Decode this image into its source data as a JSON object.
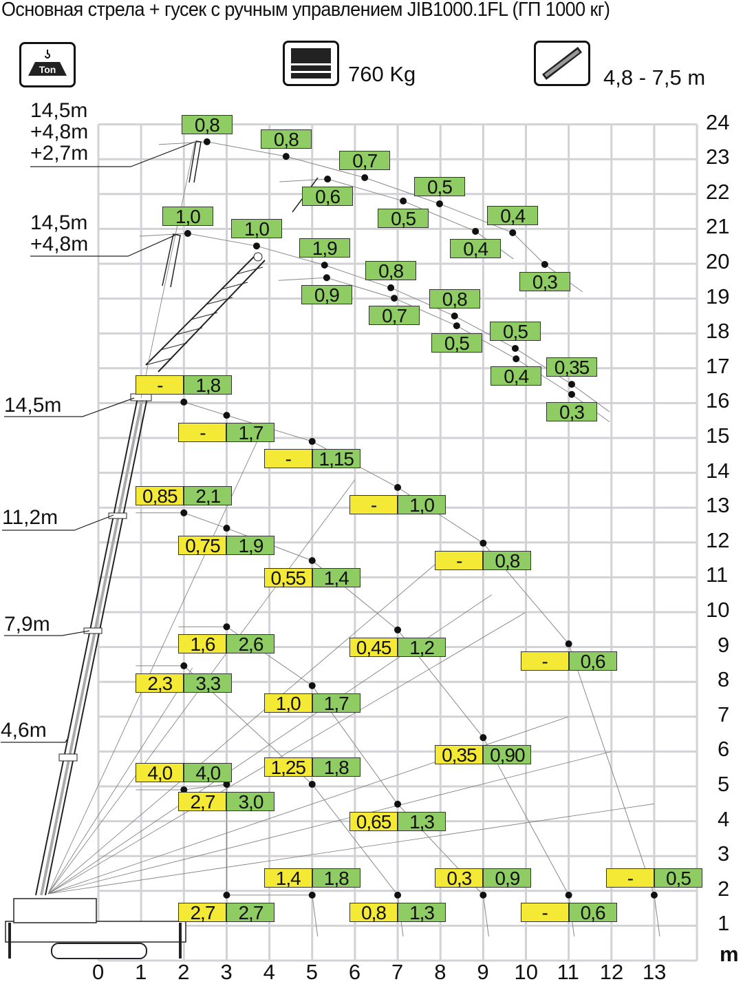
{
  "title": "Основная стрела + гусек с ручным управлением JIB1000.1FL (ГП 1000 кг)",
  "header": {
    "load_icon": "hook-weight-ton-icon",
    "load_icon_text": "Ton",
    "counterweight_icon": "counterweight-icon",
    "counterweight": "760 Kg",
    "jib_icon": "telescopic-jib-icon",
    "jib_length": "4,8 - 7,5 m"
  },
  "colors": {
    "yellow": "#f4e935",
    "green": "#8fcc63",
    "grid": "#d2d2d6",
    "dot": "#111111"
  },
  "chart_data": {
    "type": "scatter",
    "title": "",
    "xlabel": "m",
    "ylabel": "",
    "xlim": [
      0,
      14
    ],
    "ylim": [
      0,
      24
    ],
    "grid": true,
    "x_ticks": [
      "0",
      "1",
      "2",
      "3",
      "4",
      "5",
      "6",
      "7",
      "8",
      "9",
      "10",
      "11",
      "12",
      "13"
    ],
    "y_ticks": [
      "1",
      "2",
      "3",
      "4",
      "5",
      "6",
      "7",
      "8",
      "9",
      "10",
      "11",
      "12",
      "13",
      "14",
      "15",
      "16",
      "17",
      "18",
      "19",
      "20",
      "21",
      "22",
      "23",
      "24"
    ],
    "boom_labels": [
      {
        "text": "14,5m\n+4,8m\n+2,7m"
      },
      {
        "text": "14,5m\n+4,8m"
      },
      {
        "text": "14,5m"
      },
      {
        "text": "11,2m"
      },
      {
        "text": "7,9m"
      },
      {
        "text": "4,6m"
      }
    ],
    "series": [
      {
        "group": "jib-a",
        "points": [
          {
            "x": 2.54,
            "y": 23.5,
            "green": "0,8",
            "pos": "above"
          },
          {
            "x": 4.39,
            "y": 23.08,
            "green": "0,8",
            "pos": "above"
          },
          {
            "x": 6.23,
            "y": 22.47,
            "green": "0,7",
            "pos": "above"
          },
          {
            "x": 7.98,
            "y": 21.72,
            "green": "0,5",
            "pos": "above"
          },
          {
            "x": 9.69,
            "y": 20.89,
            "green": "0,4",
            "pos": "above"
          },
          {
            "x": 10.44,
            "y": 19.98,
            "green": "0,3",
            "pos": "below"
          }
        ]
      },
      {
        "group": "jib-b",
        "points": [
          {
            "x": 5.36,
            "y": 22.43,
            "green": "0,6",
            "pos": "below"
          },
          {
            "x": 7.13,
            "y": 21.8,
            "green": "0,5",
            "pos": "below"
          },
          {
            "x": 8.82,
            "y": 20.93,
            "green": "0,4",
            "pos": "below"
          }
        ]
      },
      {
        "group": "jib-c",
        "points": [
          {
            "x": 2.09,
            "y": 20.87,
            "green": "1,0",
            "pos": "above"
          },
          {
            "x": 3.7,
            "y": 20.51,
            "green": "1,0",
            "pos": "above"
          },
          {
            "x": 5.29,
            "y": 19.96,
            "green": "1,9",
            "pos": "above"
          },
          {
            "x": 6.84,
            "y": 19.31,
            "green": "0,8",
            "pos": "above"
          },
          {
            "x": 8.33,
            "y": 18.5,
            "green": "0,8",
            "pos": "above"
          },
          {
            "x": 9.75,
            "y": 17.57,
            "green": "0,5",
            "pos": "above"
          },
          {
            "x": 11.07,
            "y": 16.54,
            "green": "0,35",
            "pos": "above"
          }
        ]
      },
      {
        "group": "jib-d",
        "points": [
          {
            "x": 5.34,
            "y": 19.6,
            "green": "0,9",
            "pos": "below"
          },
          {
            "x": 6.92,
            "y": 19.01,
            "green": "0,7",
            "pos": "below"
          },
          {
            "x": 8.38,
            "y": 18.22,
            "green": "0,5",
            "pos": "below"
          },
          {
            "x": 9.77,
            "y": 17.27,
            "green": "0,4",
            "pos": "below"
          },
          {
            "x": 11.07,
            "y": 16.25,
            "green": "0,3",
            "pos": "below"
          }
        ]
      },
      {
        "group": "boom-14.5",
        "points": [
          {
            "x": 2,
            "y": 16.03,
            "yellow": "-",
            "green": "1,8",
            "pos": "above"
          },
          {
            "x": 3,
            "y": 15.65,
            "yellow": "-",
            "green": "1,7",
            "pos": "below"
          },
          {
            "x": 5,
            "y": 14.9,
            "yellow": "-",
            "green": "1,15",
            "pos": "below"
          },
          {
            "x": 7,
            "y": 13.58,
            "yellow": "-",
            "green": "1,0",
            "pos": "below"
          },
          {
            "x": 9,
            "y": 11.98,
            "yellow": "-",
            "green": "0,8",
            "pos": "below"
          },
          {
            "x": 11,
            "y": 9.09,
            "yellow": "-",
            "green": "0,6",
            "pos": "below"
          },
          {
            "x": 13,
            "y": 1.88,
            "yellow": "-",
            "green": "0,5",
            "pos": "above"
          }
        ]
      },
      {
        "group": "boom-11.2",
        "points": [
          {
            "x": 2,
            "y": 12.85,
            "yellow": "0,85",
            "green": "2,1",
            "pos": "above"
          },
          {
            "x": 3,
            "y": 12.41,
            "yellow": "0,75",
            "green": "1,9",
            "pos": "below"
          },
          {
            "x": 5,
            "y": 11.48,
            "yellow": "0,55",
            "green": "1,4",
            "pos": "below"
          },
          {
            "x": 7,
            "y": 9.49,
            "yellow": "0,45",
            "green": "1,2",
            "pos": "below"
          },
          {
            "x": 9,
            "y": 6.4,
            "yellow": "0,35",
            "green": "0,90",
            "pos": "below"
          },
          {
            "x": 11,
            "y": 1.88,
            "yellow": "-",
            "green": "0,6",
            "pos": "below"
          }
        ]
      },
      {
        "group": "boom-7.9",
        "points": [
          {
            "x": 3,
            "y": 9.58,
            "yellow": "1,6",
            "green": "2,6",
            "pos": "below"
          },
          {
            "x": 5,
            "y": 7.89,
            "yellow": "1,0",
            "green": "1,7",
            "pos": "below"
          },
          {
            "x": 7,
            "y": 4.49,
            "yellow": "0,65",
            "green": "1,3",
            "pos": "below"
          },
          {
            "x": 9,
            "y": 1.88,
            "yellow": "0,3",
            "green": "0,9",
            "pos": "above"
          }
        ]
      },
      {
        "group": "boom-4.6",
        "points": [
          {
            "x": 2,
            "y": 8.46,
            "yellow": "2,3",
            "green": "3,3",
            "pos": "below"
          },
          {
            "x": 5,
            "y": 5.06,
            "yellow": "1,25",
            "green": "1,8",
            "pos": "above"
          },
          {
            "x": 7,
            "y": 1.88,
            "yellow": "0,8",
            "green": "1,3",
            "pos": "below"
          }
        ]
      },
      {
        "group": "boom-short",
        "points": [
          {
            "x": 2,
            "y": 4.9,
            "yellow": "4,0",
            "green": "4,0",
            "pos": "above"
          },
          {
            "x": 3,
            "y": 5.06,
            "yellow": "2,7",
            "green": "3,0",
            "pos": "below"
          },
          {
            "x": 3,
            "y": 1.88,
            "yellow": "2,7",
            "green": "2,7",
            "pos": "below"
          },
          {
            "x": 5,
            "y": 1.88,
            "yellow": "1,4",
            "green": "1,8",
            "pos": "above"
          }
        ]
      }
    ]
  }
}
